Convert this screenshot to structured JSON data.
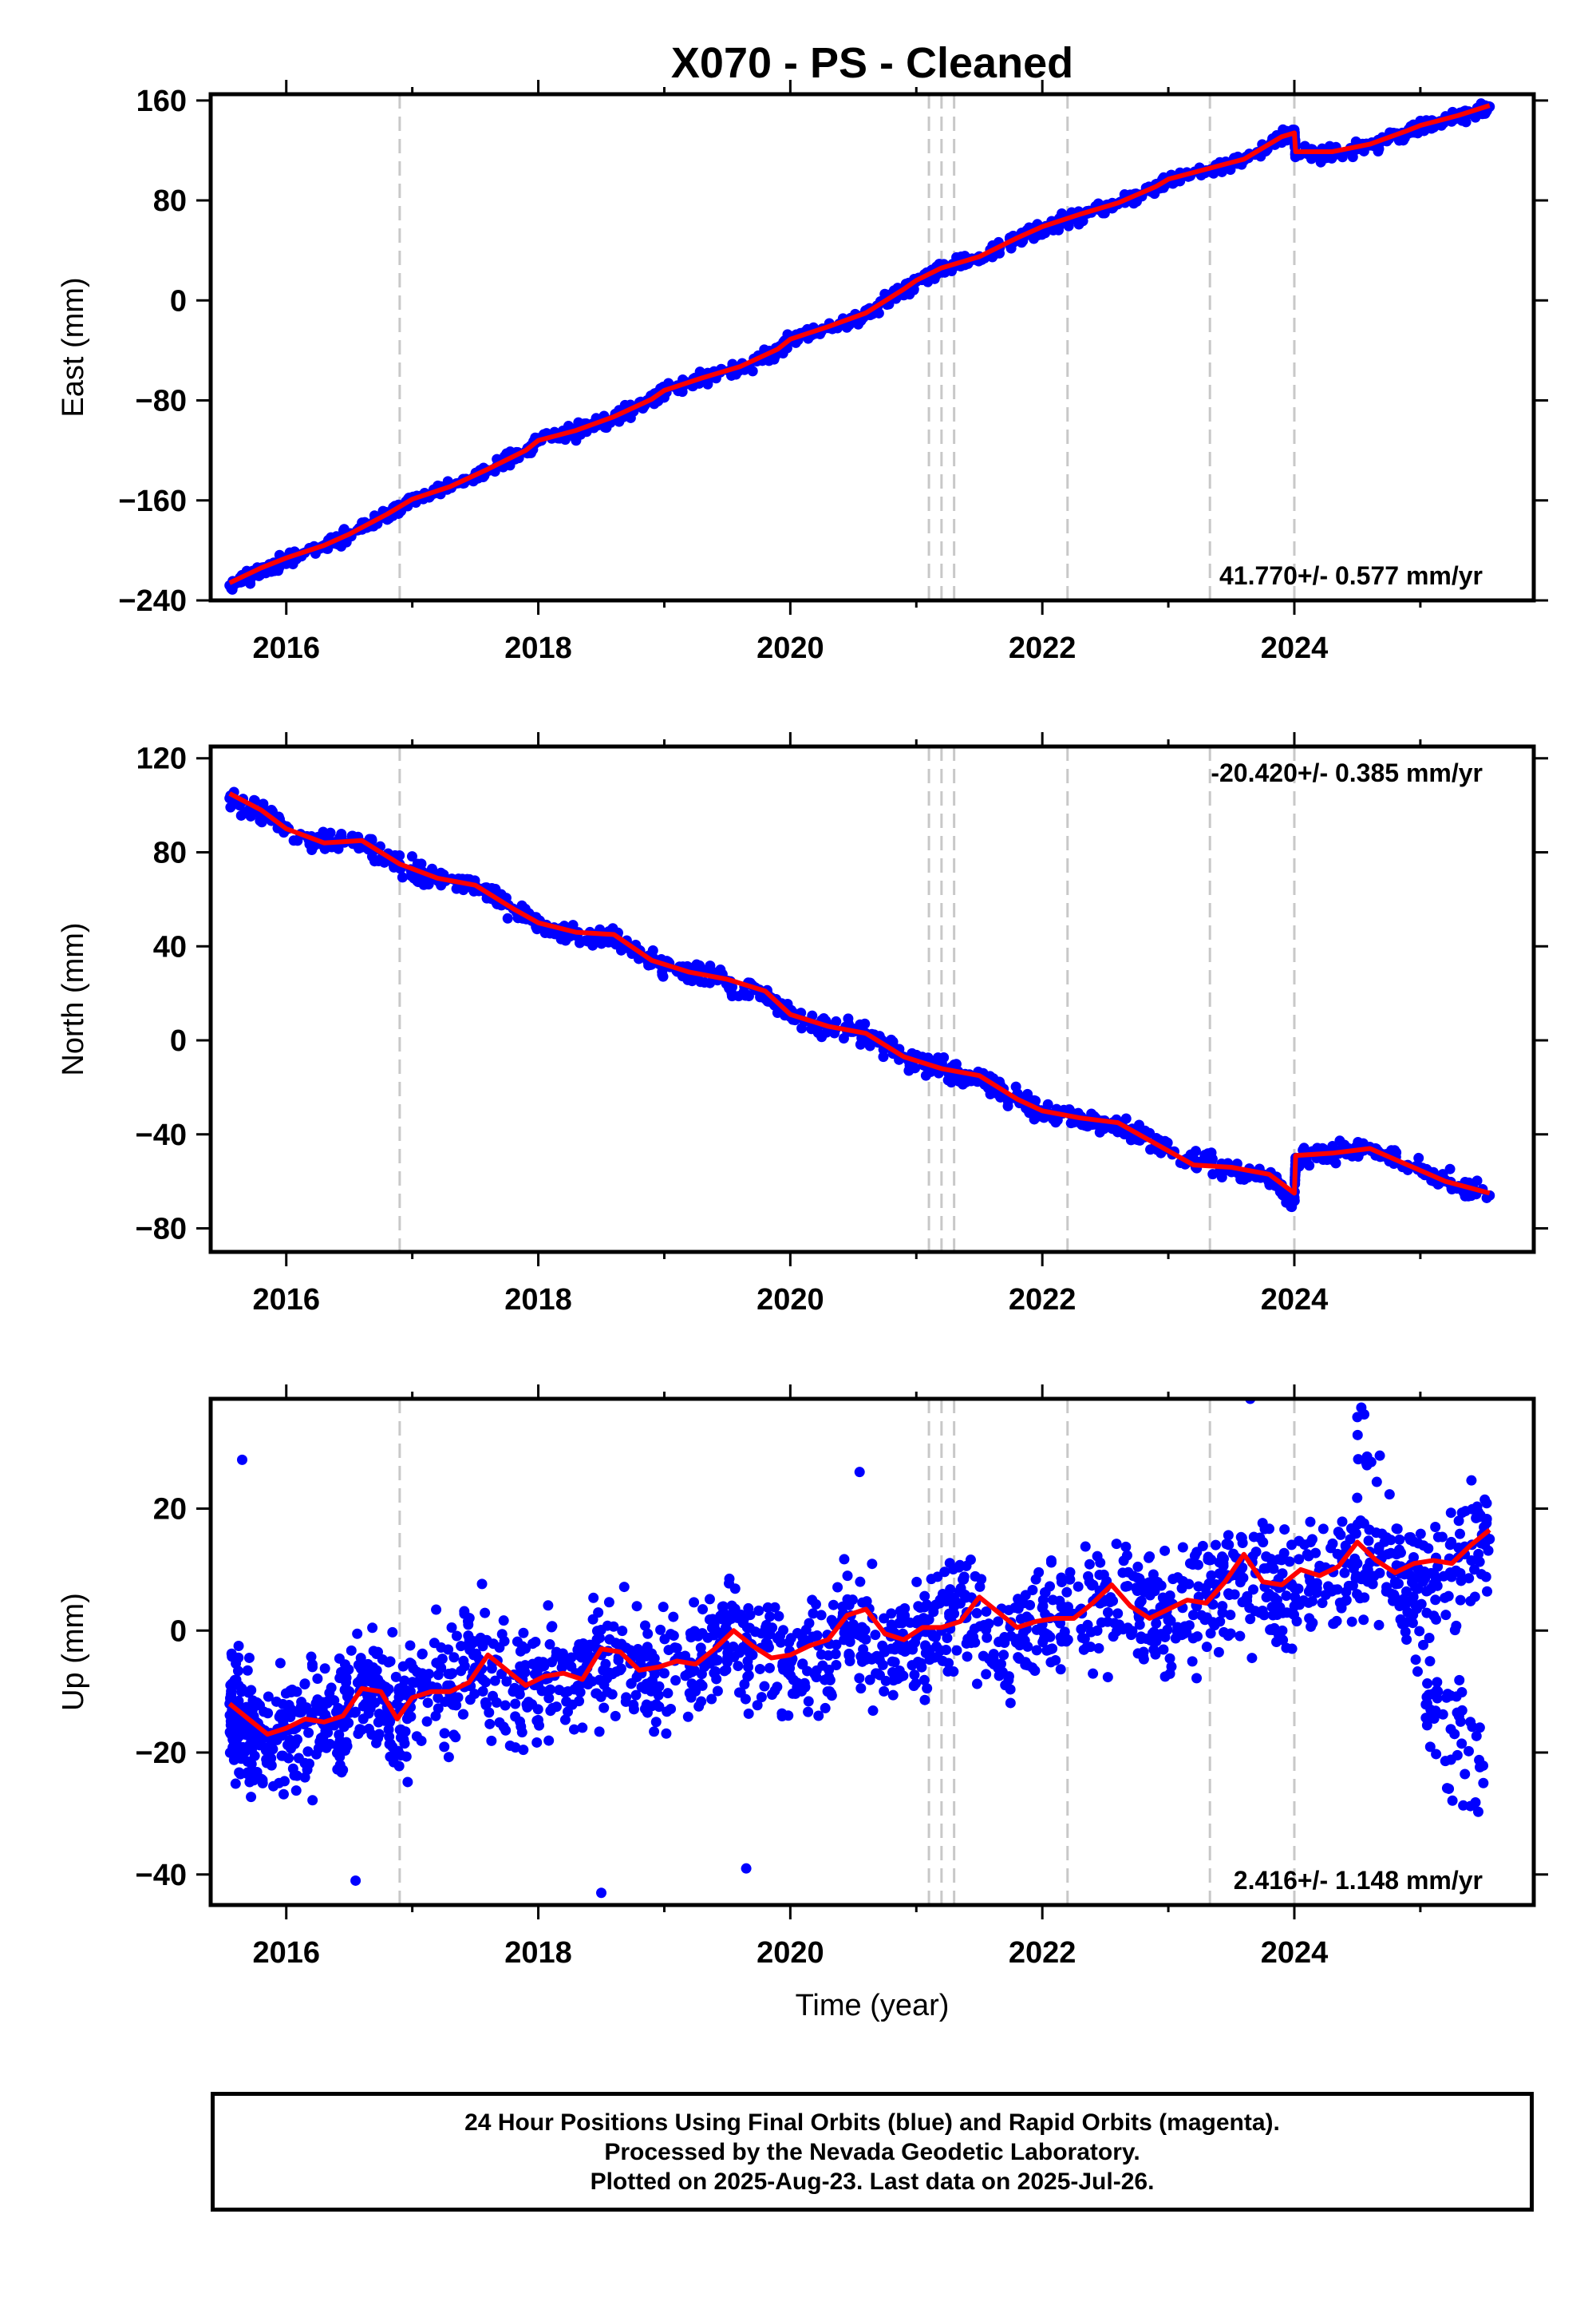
{
  "title": "X070  - PS - Cleaned",
  "footer": {
    "line1": "24 Hour Positions Using Final Orbits (blue) and Rapid Orbits (magenta).",
    "line2": "Processed by the Nevada Geodetic Laboratory.",
    "line3": "Plotted on 2025-Aug-23. Last data on 2025-Jul-26."
  },
  "colors": {
    "data": "#0000ff",
    "model": "#ff0000",
    "events": "#c8c8c8",
    "frame": "#000000"
  },
  "chart_data": [
    {
      "type": "scatter",
      "component": "East",
      "ylabel": "East (mm)",
      "xlabel": "",
      "xlim": [
        2015.4,
        2025.9
      ],
      "ylim": [
        -240,
        165
      ],
      "xticks": [
        2016,
        2018,
        2020,
        2022,
        2024
      ],
      "yticks": [
        -240,
        -160,
        -80,
        0,
        80,
        160
      ],
      "rate_label": "41.770+/- 0.577 mm/yr",
      "rate_position": "bottom-right",
      "event_lines": [
        2016.9,
        2021.1,
        2021.2,
        2021.3,
        2022.2,
        2023.33,
        2024.0
      ],
      "series": [
        {
          "role": "daily positions",
          "color": "#0000ff",
          "x": [
            2015.55,
            2015.8,
            2016.0,
            2016.3,
            2016.5,
            2016.8,
            2017.0,
            2017.3,
            2017.6,
            2017.9,
            2018.0,
            2018.3,
            2018.6,
            2018.9,
            2019.0,
            2019.3,
            2019.6,
            2019.9,
            2020.0,
            2020.3,
            2020.6,
            2020.9,
            2021.0,
            2021.2,
            2021.5,
            2021.8,
            2022.0,
            2022.3,
            2022.6,
            2022.9,
            2023.0,
            2023.3,
            2023.6,
            2023.9,
            2024.0,
            2024.01,
            2024.3,
            2024.6,
            2024.9,
            2025.0,
            2025.3,
            2025.55
          ],
          "y": [
            -228,
            -216,
            -207,
            -197,
            -188,
            -172,
            -160,
            -150,
            -136,
            -121,
            -113,
            -105,
            -94,
            -80,
            -73,
            -63,
            -54,
            -40,
            -32,
            -22,
            -11,
            8,
            15,
            25,
            34,
            49,
            58,
            68,
            77,
            90,
            96,
            104,
            112,
            130,
            133,
            118,
            118,
            124,
            135,
            139,
            147,
            155
          ]
        },
        {
          "role": "model fit",
          "color": "#ff0000",
          "x": [
            2015.55,
            2015.8,
            2016.0,
            2016.3,
            2016.5,
            2016.8,
            2017.0,
            2017.3,
            2017.6,
            2017.9,
            2018.0,
            2018.3,
            2018.6,
            2018.9,
            2019.0,
            2019.3,
            2019.6,
            2019.9,
            2020.0,
            2020.3,
            2020.6,
            2020.9,
            2021.0,
            2021.2,
            2021.5,
            2021.8,
            2022.0,
            2022.3,
            2022.6,
            2022.9,
            2023.0,
            2023.3,
            2023.6,
            2023.9,
            2024.0,
            2024.01,
            2024.3,
            2024.6,
            2024.9,
            2025.0,
            2025.3,
            2025.55
          ],
          "y": [
            -226,
            -214,
            -206,
            -196,
            -187,
            -171,
            -159,
            -149,
            -135,
            -120,
            -112,
            -104,
            -93,
            -79,
            -72,
            -62,
            -53,
            -39,
            -31,
            -21,
            -10,
            9,
            16,
            26,
            35,
            50,
            59,
            69,
            78,
            91,
            97,
            105,
            113,
            131,
            134,
            119,
            119,
            125,
            136,
            140,
            148,
            156
          ]
        }
      ]
    },
    {
      "type": "scatter",
      "component": "North",
      "ylabel": "North (mm)",
      "xlabel": "",
      "xlim": [
        2015.4,
        2025.9
      ],
      "ylim": [
        -90,
        125
      ],
      "xticks": [
        2016,
        2018,
        2020,
        2022,
        2024
      ],
      "yticks": [
        -80,
        -40,
        0,
        40,
        80,
        120
      ],
      "rate_label": "-20.420+/- 0.385 mm/yr",
      "rate_position": "top-right",
      "event_lines": [
        2016.9,
        2021.1,
        2021.2,
        2021.3,
        2022.2,
        2023.33,
        2024.0
      ],
      "series": [
        {
          "role": "daily positions",
          "color": "#0000ff",
          "x": [
            2015.55,
            2015.8,
            2016.0,
            2016.3,
            2016.6,
            2016.9,
            2017.2,
            2017.5,
            2017.8,
            2018.0,
            2018.3,
            2018.6,
            2018.9,
            2019.2,
            2019.5,
            2019.8,
            2020.0,
            2020.3,
            2020.6,
            2020.9,
            2021.2,
            2021.5,
            2021.8,
            2022.0,
            2022.3,
            2022.6,
            2022.9,
            2023.2,
            2023.5,
            2023.8,
            2024.0,
            2024.01,
            2024.3,
            2024.6,
            2024.9,
            2025.2,
            2025.55
          ],
          "y": [
            103,
            97,
            90,
            84,
            84,
            75,
            69,
            66,
            56,
            49,
            45,
            44,
            34,
            29,
            25,
            20,
            10,
            5,
            3,
            -7,
            -12,
            -16,
            -25,
            -30,
            -34,
            -36,
            -44,
            -52,
            -55,
            -59,
            -68,
            -50,
            -48,
            -46,
            -53,
            -60,
            -66
          ]
        },
        {
          "role": "model fit",
          "color": "#ff0000",
          "x": [
            2015.55,
            2015.8,
            2016.0,
            2016.3,
            2016.6,
            2016.9,
            2017.2,
            2017.5,
            2017.8,
            2018.0,
            2018.3,
            2018.6,
            2018.9,
            2019.2,
            2019.5,
            2019.8,
            2020.0,
            2020.3,
            2020.6,
            2020.9,
            2021.2,
            2021.5,
            2021.8,
            2022.0,
            2022.3,
            2022.6,
            2022.9,
            2023.2,
            2023.5,
            2023.8,
            2024.0,
            2024.01,
            2024.3,
            2024.6,
            2024.9,
            2025.2,
            2025.55
          ],
          "y": [
            105,
            98,
            90,
            84,
            85,
            75,
            69,
            66,
            56,
            50,
            46,
            45,
            34,
            29,
            26,
            21,
            11,
            6,
            3,
            -7,
            -12,
            -15,
            -25,
            -30,
            -33,
            -35,
            -44,
            -53,
            -54,
            -57,
            -65,
            -49,
            -48,
            -46,
            -53,
            -60,
            -65
          ]
        }
      ]
    },
    {
      "type": "scatter",
      "component": "Up",
      "ylabel": "Up (mm)",
      "xlabel": "Time (year)",
      "xlim": [
        2015.4,
        2025.9
      ],
      "ylim": [
        -45,
        38
      ],
      "xticks": [
        2016,
        2018,
        2020,
        2022,
        2024
      ],
      "yticks": [
        -40,
        -20,
        0,
        20
      ],
      "rate_label": "2.416+/- 1.148 mm/yr",
      "rate_position": "bottom-right",
      "event_lines": [
        2016.9,
        2021.1,
        2021.2,
        2021.3,
        2022.2,
        2023.33,
        2024.0
      ],
      "series": [
        {
          "role": "daily positions",
          "color": "#0000ff",
          "x": [
            2015.55,
            2015.6,
            2015.7,
            2015.8,
            2016.0,
            2016.2,
            2016.4,
            2016.5,
            2016.7,
            2016.85,
            2017.0,
            2017.3,
            2017.5,
            2017.8,
            2018.0,
            2018.3,
            2018.5,
            2018.8,
            2019.0,
            2019.3,
            2019.5,
            2019.7,
            2020.0,
            2020.3,
            2020.5,
            2020.8,
            2021.0,
            2021.2,
            2021.4,
            2021.7,
            2022.0,
            2022.2,
            2022.5,
            2022.8,
            2023.0,
            2023.3,
            2023.5,
            2023.8,
            2024.0,
            2024.3,
            2024.5,
            2024.8,
            2025.0,
            2025.3,
            2025.55,
            2015.65,
            2016.55,
            2018.5,
            2019.65,
            2020.55,
            2023.65,
            2024.5,
            2025.1,
            2025.5
          ],
          "y": [
            -12,
            -14,
            -16,
            -18,
            -16,
            -14,
            -15,
            -10,
            -9,
            -14,
            -11,
            -9,
            -4,
            -10,
            -9,
            -7,
            -4,
            -7,
            -7,
            -4,
            0,
            -4,
            -5,
            -2,
            1,
            -3,
            -1,
            0,
            3,
            -2,
            1,
            3,
            5,
            3,
            2,
            6,
            9,
            6,
            7,
            10,
            11,
            8,
            9,
            12,
            15,
            28,
            -41,
            -43,
            -39,
            26,
            38,
            35,
            -14,
            -25
          ]
        },
        {
          "role": "model fit",
          "color": "#ff0000",
          "x": [
            2015.55,
            2015.7,
            2015.85,
            2016.0,
            2016.15,
            2016.3,
            2016.45,
            2016.6,
            2016.75,
            2016.88,
            2017.0,
            2017.15,
            2017.3,
            2017.45,
            2017.6,
            2017.75,
            2017.9,
            2018.05,
            2018.2,
            2018.35,
            2018.5,
            2018.65,
            2018.8,
            2018.95,
            2019.1,
            2019.25,
            2019.4,
            2019.55,
            2019.7,
            2019.85,
            2020.0,
            2020.15,
            2020.3,
            2020.45,
            2020.6,
            2020.75,
            2020.9,
            2021.05,
            2021.2,
            2021.35,
            2021.5,
            2021.65,
            2021.8,
            2021.95,
            2022.1,
            2022.25,
            2022.4,
            2022.55,
            2022.7,
            2022.85,
            2023.0,
            2023.15,
            2023.3,
            2023.45,
            2023.6,
            2023.75,
            2023.9,
            2024.05,
            2024.2,
            2024.35,
            2024.5,
            2024.65,
            2024.8,
            2024.95,
            2025.1,
            2025.25,
            2025.4,
            2025.55
          ],
          "y": [
            -12,
            -14.5,
            -17,
            -16,
            -14.5,
            -15,
            -14,
            -9.5,
            -10,
            -14.5,
            -11,
            -10,
            -10,
            -8.5,
            -4,
            -6.5,
            -9,
            -7.5,
            -7,
            -8,
            -3,
            -3.5,
            -6.5,
            -6,
            -5,
            -5.5,
            -3,
            0,
            -2.5,
            -4.5,
            -4,
            -2.5,
            -1.5,
            2.5,
            3.5,
            -0.5,
            -1.5,
            0.5,
            0.5,
            1.5,
            5.5,
            3,
            0.5,
            1.5,
            2,
            2,
            4.5,
            7.5,
            4,
            2,
            3.5,
            5,
            4.5,
            8,
            12.5,
            8,
            7.5,
            10,
            9,
            10.5,
            14.5,
            11.5,
            9.5,
            11,
            11.5,
            11,
            14,
            16.5
          ]
        }
      ]
    }
  ]
}
